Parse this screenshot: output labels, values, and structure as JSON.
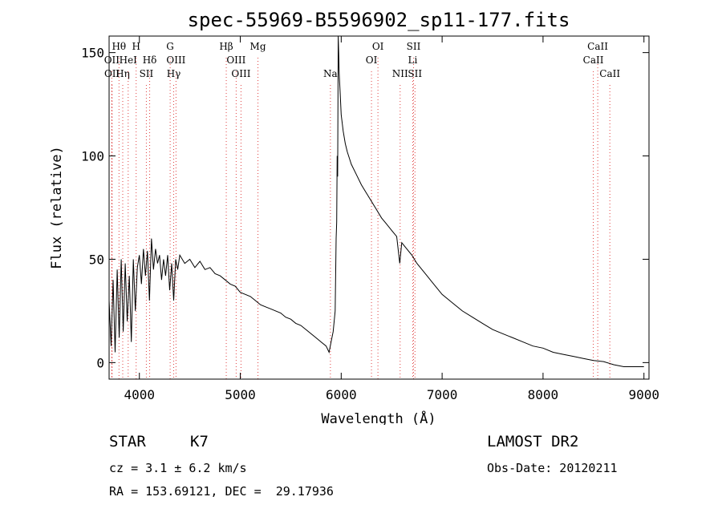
{
  "chart_data": {
    "type": "line",
    "title": "spec-55969-B5596902_sp11-177.fits",
    "xlabel": "Wavelength (Å)",
    "ylabel": "Flux (relative)",
    "xlim": [
      3700,
      9050
    ],
    "ylim": [
      -8,
      158
    ],
    "x_ticks": [
      4000,
      5000,
      6000,
      7000,
      8000,
      9000
    ],
    "y_ticks": [
      0,
      50,
      100,
      150
    ],
    "grid": false,
    "series": [
      {
        "points": [
          [
            3700,
            30
          ],
          [
            3720,
            8
          ],
          [
            3740,
            40
          ],
          [
            3760,
            5
          ],
          [
            3780,
            45
          ],
          [
            3800,
            12
          ],
          [
            3820,
            50
          ],
          [
            3840,
            15
          ],
          [
            3860,
            48
          ],
          [
            3880,
            20
          ],
          [
            3900,
            42
          ],
          [
            3920,
            10
          ],
          [
            3940,
            50
          ],
          [
            3960,
            25
          ],
          [
            3980,
            46
          ],
          [
            4000,
            52
          ],
          [
            4020,
            38
          ],
          [
            4040,
            55
          ],
          [
            4060,
            42
          ],
          [
            4080,
            54
          ],
          [
            4100,
            30
          ],
          [
            4120,
            60
          ],
          [
            4140,
            45
          ],
          [
            4160,
            55
          ],
          [
            4180,
            48
          ],
          [
            4200,
            52
          ],
          [
            4220,
            40
          ],
          [
            4240,
            50
          ],
          [
            4260,
            42
          ],
          [
            4280,
            52
          ],
          [
            4300,
            35
          ],
          [
            4320,
            48
          ],
          [
            4340,
            30
          ],
          [
            4360,
            50
          ],
          [
            4380,
            45
          ],
          [
            4400,
            52
          ],
          [
            4450,
            48
          ],
          [
            4500,
            50
          ],
          [
            4550,
            46
          ],
          [
            4600,
            49
          ],
          [
            4650,
            45
          ],
          [
            4700,
            46
          ],
          [
            4750,
            43
          ],
          [
            4800,
            42
          ],
          [
            4850,
            40
          ],
          [
            4900,
            38
          ],
          [
            4950,
            37
          ],
          [
            5000,
            34
          ],
          [
            5050,
            33
          ],
          [
            5100,
            32
          ],
          [
            5150,
            30
          ],
          [
            5200,
            28
          ],
          [
            5250,
            27
          ],
          [
            5300,
            26
          ],
          [
            5350,
            25
          ],
          [
            5400,
            24
          ],
          [
            5450,
            22
          ],
          [
            5500,
            21
          ],
          [
            5550,
            19
          ],
          [
            5600,
            18
          ],
          [
            5650,
            16
          ],
          [
            5700,
            14
          ],
          [
            5750,
            12
          ],
          [
            5800,
            10
          ],
          [
            5850,
            8
          ],
          [
            5880,
            5
          ],
          [
            5900,
            10
          ],
          [
            5920,
            15
          ],
          [
            5940,
            25
          ],
          [
            5950,
            60
          ],
          [
            5955,
            68
          ],
          [
            5960,
            100
          ],
          [
            5965,
            90
          ],
          [
            5970,
            158
          ],
          [
            5975,
            150
          ],
          [
            5980,
            140
          ],
          [
            5990,
            130
          ],
          [
            6000,
            120
          ],
          [
            6020,
            112
          ],
          [
            6040,
            106
          ],
          [
            6060,
            102
          ],
          [
            6080,
            99
          ],
          [
            6100,
            96
          ],
          [
            6150,
            91
          ],
          [
            6200,
            86
          ],
          [
            6250,
            82
          ],
          [
            6300,
            78
          ],
          [
            6350,
            74
          ],
          [
            6400,
            70
          ],
          [
            6450,
            67
          ],
          [
            6500,
            64
          ],
          [
            6550,
            61
          ],
          [
            6580,
            48
          ],
          [
            6600,
            58
          ],
          [
            6650,
            55
          ],
          [
            6700,
            52
          ],
          [
            6750,
            48
          ],
          [
            6800,
            45
          ],
          [
            6850,
            42
          ],
          [
            6900,
            39
          ],
          [
            6950,
            36
          ],
          [
            7000,
            33
          ],
          [
            7100,
            29
          ],
          [
            7200,
            25
          ],
          [
            7300,
            22
          ],
          [
            7400,
            19
          ],
          [
            7500,
            16
          ],
          [
            7600,
            14
          ],
          [
            7700,
            12
          ],
          [
            7800,
            10
          ],
          [
            7900,
            8
          ],
          [
            8000,
            7
          ],
          [
            8100,
            5
          ],
          [
            8200,
            4
          ],
          [
            8300,
            3
          ],
          [
            8400,
            2
          ],
          [
            8500,
            1
          ],
          [
            8600,
            0.5
          ],
          [
            8700,
            -1
          ],
          [
            8800,
            -2
          ],
          [
            8900,
            -2
          ],
          [
            9000,
            -2
          ]
        ]
      }
    ],
    "lines": [
      {
        "label": "Hθ",
        "x": 3798,
        "row": 0,
        "color": "#e04040"
      },
      {
        "label": "OII",
        "x": 3727,
        "row": 1,
        "color": "#e04040"
      },
      {
        "label": "OII",
        "x": 3729,
        "row": 2,
        "color": "#e04040"
      },
      {
        "label": "Hη",
        "x": 3835,
        "row": 2,
        "color": "#e04040"
      },
      {
        "label": "HeI",
        "x": 3889,
        "row": 1,
        "color": "#e04040"
      },
      {
        "label": "H",
        "x": 3968,
        "row": 0,
        "color": "#e04040"
      },
      {
        "label": "Hδ",
        "x": 4102,
        "row": 1,
        "color": "#e04040"
      },
      {
        "label": "SII",
        "x": 4069,
        "row": 2,
        "color": "#e04040"
      },
      {
        "label": "G",
        "x": 4305,
        "row": 0,
        "color": "#e04040"
      },
      {
        "label": "OIII",
        "x": 4363,
        "row": 1,
        "color": "#e04040"
      },
      {
        "label": "Hγ",
        "x": 4340,
        "row": 2,
        "color": "#e04040"
      },
      {
        "label": "Hβ",
        "x": 4861,
        "row": 0,
        "color": "#e04040"
      },
      {
        "label": "OIII",
        "x": 4959,
        "row": 1,
        "color": "#e04040"
      },
      {
        "label": "OIII",
        "x": 5007,
        "row": 2,
        "color": "#e04040"
      },
      {
        "label": "Mg",
        "x": 5175,
        "row": 0,
        "color": "#e04040"
      },
      {
        "label": "Na",
        "x": 5893,
        "row": 2,
        "color": "#e04040"
      },
      {
        "label": "OI",
        "x": 6364,
        "row": 0,
        "color": "#e04040"
      },
      {
        "label": "OI",
        "x": 6300,
        "row": 1,
        "color": "#e04040"
      },
      {
        "label": "SII",
        "x": 6717,
        "row": 0,
        "color": "#e04040"
      },
      {
        "label": "Li",
        "x": 6708,
        "row": 1,
        "color": "#e04040"
      },
      {
        "label": "NII",
        "x": 6584,
        "row": 2,
        "color": "#e04040"
      },
      {
        "label": "SII",
        "x": 6731,
        "row": 2,
        "color": "#e04040"
      },
      {
        "label": "CaII",
        "x": 8542,
        "row": 0,
        "color": "#e04040"
      },
      {
        "label": "CaII",
        "x": 8498,
        "row": 1,
        "color": "#e04040"
      },
      {
        "label": "CaII",
        "x": 8662,
        "row": 2,
        "color": "#e04040"
      }
    ]
  },
  "info": {
    "object_class": "STAR",
    "subclass": "K7",
    "survey": "LAMOST DR2",
    "redshift_line": "cz = 3.1 ± 6.2 km/s",
    "obs_date": "Obs-Date: 20120211",
    "coords": "RA = 153.69121, DEC =  29.17936"
  }
}
